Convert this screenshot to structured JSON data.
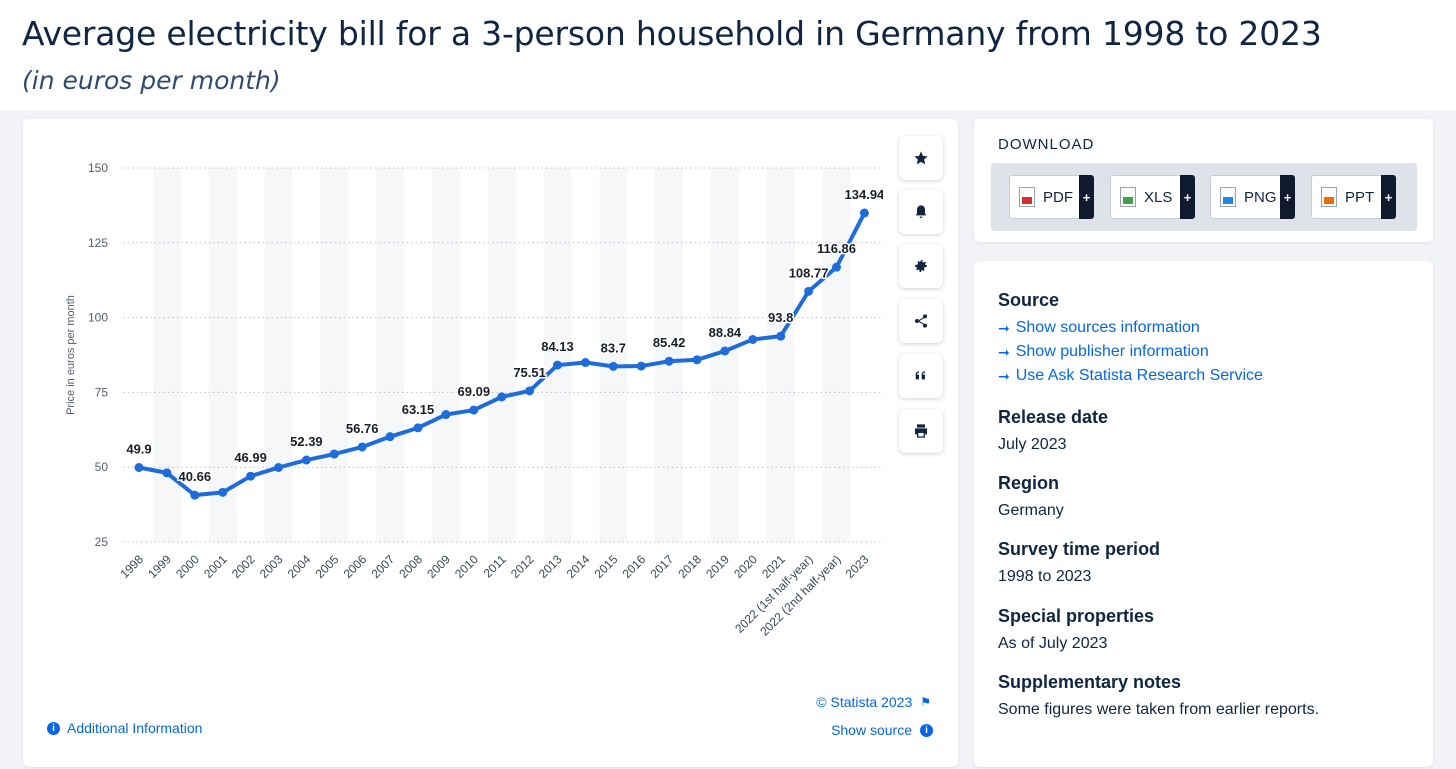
{
  "header": {
    "title": "Average electricity bill for a 3-person household in Germany from 1998 to 2023",
    "subtitle": "(in euros per month)"
  },
  "chart_data": {
    "type": "line",
    "title": "Average electricity bill for a 3-person household in Germany from 1998 to 2023",
    "subtitle": "(in euros per month)",
    "ylabel": "Price in euros per month",
    "xlabel": "",
    "ylim": [
      25,
      150
    ],
    "yticks": [
      25,
      50,
      75,
      100,
      125,
      150
    ],
    "grid": "horizontal dotted",
    "categories": [
      "1998",
      "1999",
      "2000",
      "2001",
      "2002",
      "2003",
      "2004",
      "2005",
      "2006",
      "2007",
      "2008",
      "2009",
      "2010",
      "2011",
      "2012",
      "2013",
      "2014",
      "2015",
      "2016",
      "2017",
      "2018",
      "2019",
      "2020",
      "2021",
      "2022 (1st half-year)",
      "2022 (2nd half-year)",
      "2023"
    ],
    "series": [
      {
        "values": [
          49.9,
          48.1,
          40.66,
          41.6,
          46.99,
          49.9,
          52.39,
          54.4,
          56.76,
          60.2,
          63.15,
          67.6,
          69.09,
          73.5,
          75.51,
          84.13,
          84.99,
          83.7,
          83.8,
          85.42,
          85.9,
          88.84,
          92.7,
          93.8,
          108.77,
          116.86,
          134.94
        ],
        "data_labels": {
          "0": "49.9",
          "2": "40.66",
          "4": "46.99",
          "6": "52.39",
          "8": "56.76",
          "10": "63.15",
          "12": "69.09",
          "14": "75.51",
          "15": "84.13",
          "17": "83.7",
          "19": "85.42",
          "21": "88.84",
          "23": "93.8",
          "24": "108.77",
          "25": "116.86",
          "26": "134.94"
        }
      }
    ],
    "line_color": "#1d6cd9"
  },
  "chart_footer": {
    "copyright": "© Statista 2023",
    "show_source": "Show source",
    "additional_info": "Additional Information"
  },
  "tools": {
    "icons": [
      "star-icon",
      "bell-icon",
      "gear-icon",
      "share-icon",
      "quote-icon",
      "print-icon"
    ]
  },
  "download": {
    "title": "DOWNLOAD",
    "buttons": [
      {
        "label": "PDF",
        "color": "#d32f2f",
        "plus": "+"
      },
      {
        "label": "XLS",
        "color": "#43a047",
        "plus": "+"
      },
      {
        "label": "PNG",
        "color": "#1e88e5",
        "plus": "+"
      },
      {
        "label": "PPT",
        "color": "#ef6c00",
        "plus": "+"
      }
    ]
  },
  "info": {
    "source_head": "Source",
    "source_links": [
      "Show sources information",
      "Show publisher information",
      "Use Ask Statista Research Service"
    ],
    "release_head": "Release date",
    "release_val": "July 2023",
    "region_head": "Region",
    "region_val": "Germany",
    "period_head": "Survey time period",
    "period_val": "1998 to 2023",
    "special_head": "Special properties",
    "special_val": "As of July 2023",
    "notes_head": "Supplementary notes",
    "notes_val": "Some figures were taken from earlier reports."
  }
}
